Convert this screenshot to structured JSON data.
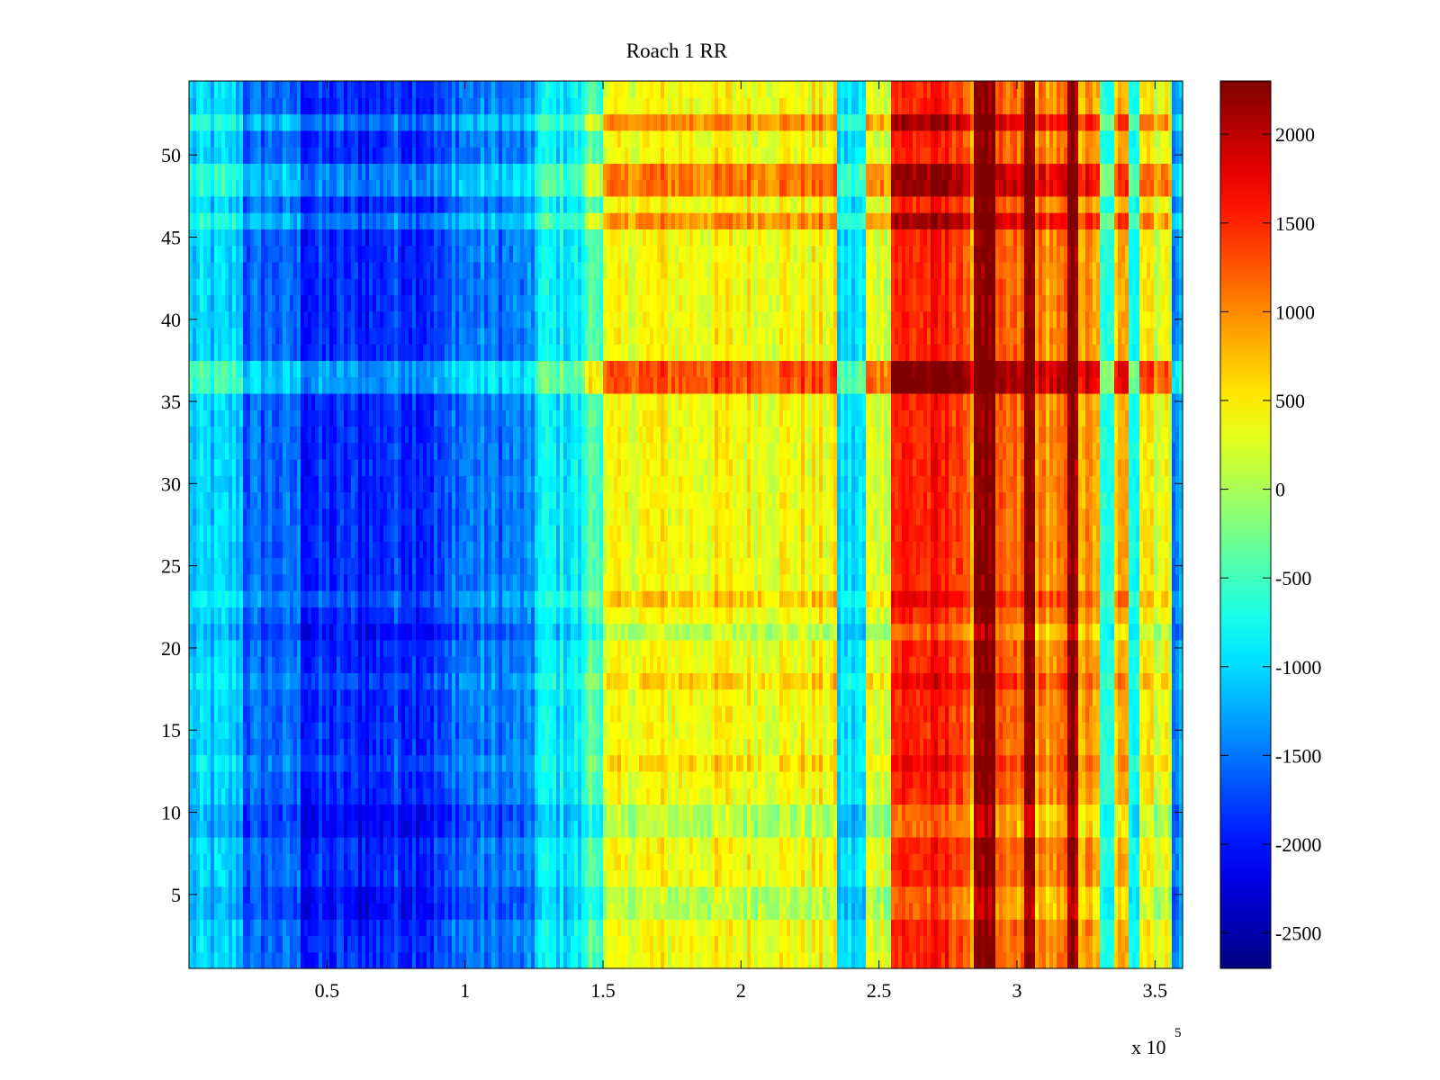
{
  "chart_data": {
    "type": "heatmap",
    "title": "Roach 1 RR",
    "xlabel": "",
    "ylabel": "",
    "x_exponent_label": "x 10",
    "x_exponent_power": "5",
    "xlim": [
      0,
      360000
    ],
    "ylim": [
      0.5,
      54.5
    ],
    "x_tick_values": [
      0.5,
      1,
      1.5,
      2,
      2.5,
      3,
      3.5
    ],
    "x_tick_labels": [
      "0.5",
      "1",
      "1.5",
      "2",
      "2.5",
      "3",
      "3.5"
    ],
    "y_tick_values": [
      5,
      10,
      15,
      20,
      25,
      30,
      35,
      40,
      45,
      50
    ],
    "y_tick_labels": [
      "5",
      "10",
      "15",
      "20",
      "25",
      "30",
      "35",
      "40",
      "45",
      "50"
    ],
    "rows": 54,
    "colormap": "jet",
    "clim": [
      -2700,
      2300
    ],
    "colorbar_tick_values": [
      -2500,
      -2000,
      -1500,
      -1000,
      -500,
      0,
      500,
      1000,
      1500,
      2000
    ],
    "colorbar_tick_labels": [
      "-2500",
      "-2000",
      "-1500",
      "-1000",
      "-500",
      "0",
      "500",
      "1000",
      "1500",
      "2000"
    ],
    "column_profile": [
      {
        "x0": 0,
        "x1": 20000,
        "value": -1100
      },
      {
        "x0": 20000,
        "x1": 40000,
        "value": -1600
      },
      {
        "x0": 40000,
        "x1": 70000,
        "value": -1900
      },
      {
        "x0": 70000,
        "x1": 95000,
        "value": -1800
      },
      {
        "x0": 95000,
        "x1": 125000,
        "value": -1500
      },
      {
        "x0": 125000,
        "x1": 143000,
        "value": -900
      },
      {
        "x0": 143000,
        "x1": 150000,
        "value": -400
      },
      {
        "x0": 150000,
        "x1": 160000,
        "value": 300
      },
      {
        "x0": 160000,
        "x1": 235000,
        "value": 400
      },
      {
        "x0": 235000,
        "x1": 245000,
        "value": -1000
      },
      {
        "x0": 245000,
        "x1": 255000,
        "value": 300
      },
      {
        "x0": 255000,
        "x1": 280000,
        "value": 1500
      },
      {
        "x0": 280000,
        "x1": 285000,
        "value": 1000
      },
      {
        "x0": 285000,
        "x1": 292000,
        "value": 2300
      },
      {
        "x0": 292000,
        "x1": 302000,
        "value": 1100
      },
      {
        "x0": 302000,
        "x1": 306000,
        "value": 2200
      },
      {
        "x0": 306000,
        "x1": 318000,
        "value": 1000
      },
      {
        "x0": 318000,
        "x1": 322000,
        "value": 2200
      },
      {
        "x0": 322000,
        "x1": 330000,
        "value": 900
      },
      {
        "x0": 330000,
        "x1": 335000,
        "value": -800
      },
      {
        "x0": 335000,
        "x1": 340000,
        "value": 700
      },
      {
        "x0": 340000,
        "x1": 344000,
        "value": -600
      },
      {
        "x0": 344000,
        "x1": 350000,
        "value": 600
      },
      {
        "x0": 350000,
        "x1": 356000,
        "value": 300
      },
      {
        "x0": 356000,
        "x1": 360000,
        "value": -1300
      }
    ],
    "row_offsets": [
      {
        "row": 37,
        "value": 900
      },
      {
        "row": 36,
        "value": 900
      },
      {
        "row": 48,
        "value": 700
      },
      {
        "row": 49,
        "value": 700
      },
      {
        "row": 46,
        "value": 600
      },
      {
        "row": 52,
        "value": 600
      },
      {
        "row": 9,
        "value": -350
      },
      {
        "row": 10,
        "value": -350
      },
      {
        "row": 4,
        "value": -300
      },
      {
        "row": 5,
        "value": -300
      },
      {
        "row": 21,
        "value": -300
      },
      {
        "row": 18,
        "value": 250
      },
      {
        "row": 13,
        "value": 200
      },
      {
        "row": 23,
        "value": 300
      }
    ]
  }
}
